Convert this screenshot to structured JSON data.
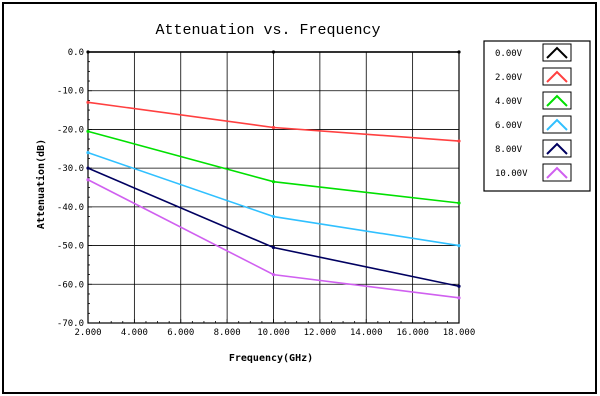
{
  "chart_data": {
    "type": "line",
    "title": "Attenuation vs. Frequency",
    "xlabel": "Frequency(GHz)",
    "ylabel": "Attenuation(dB)",
    "xlim": [
      2,
      18
    ],
    "ylim": [
      -70,
      0
    ],
    "x_ticks": [
      "2.000",
      "4.000",
      "6.000",
      "8.000",
      "10.000",
      "12.000",
      "14.000",
      "16.000",
      "18.000"
    ],
    "y_ticks": [
      "0.0",
      "-10.0",
      "-20.0",
      "-30.0",
      "-40.0",
      "-50.0",
      "-60.0",
      "-70.0"
    ],
    "x_tick_values": [
      2,
      4,
      6,
      8,
      10,
      12,
      14,
      16,
      18
    ],
    "y_tick_values": [
      0,
      -10,
      -20,
      -30,
      -40,
      -50,
      -60,
      -70
    ],
    "grid": true,
    "legend_position": "right",
    "x": [
      2,
      10,
      18
    ],
    "series": [
      {
        "name": "0.00V",
        "color": "#000000",
        "values": [
          0.0,
          0.0,
          0.0
        ]
      },
      {
        "name": "2.00V",
        "color": "#ff4040",
        "values": [
          -13.0,
          -19.5,
          -23.0
        ]
      },
      {
        "name": "4.00V",
        "color": "#00e000",
        "values": [
          -20.5,
          -33.5,
          -39.0
        ]
      },
      {
        "name": "6.00V",
        "color": "#30c0ff",
        "values": [
          -26.0,
          -42.5,
          -50.0
        ]
      },
      {
        "name": "8.00V",
        "color": "#000060",
        "values": [
          -30.0,
          -50.5,
          -60.5
        ]
      },
      {
        "name": "10.00V",
        "color": "#d060f0",
        "values": [
          -33.0,
          -57.5,
          -63.5
        ]
      }
    ]
  }
}
